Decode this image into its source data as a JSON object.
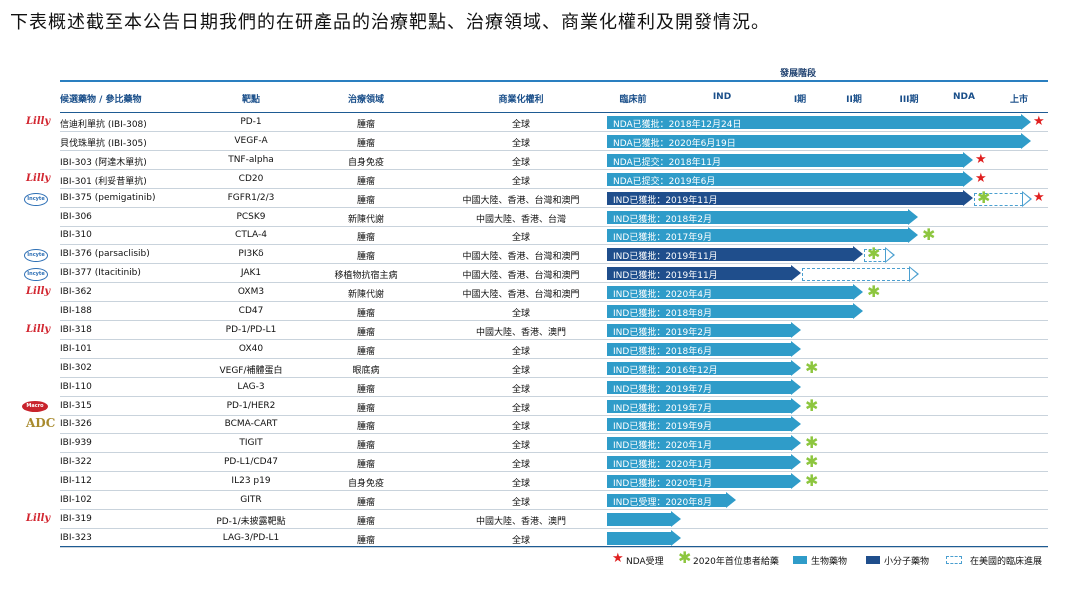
{
  "caption": "下表概述截至本公告日期我們的在研產品的治療靶點、治療領域、商業化權利及開發情況。",
  "stage_group": "發展階段",
  "headers": {
    "name": "候選藥物 / 參比藥物",
    "target": "靶點",
    "area": "治療領域",
    "rights": "商業化權利",
    "preclinical": "臨床前",
    "ind": "IND",
    "phase1": "I期",
    "phase2": "II期",
    "phase3": "III期",
    "nda": "NDA",
    "launch": "上市"
  },
  "stage_order": [
    "preclinical",
    "ind",
    "phase1",
    "phase2",
    "phase3",
    "nda",
    "launch"
  ],
  "rows": [
    {
      "logo": "Lilly",
      "name": "信迪利單抗 (IBI-308)",
      "target": "PD-1",
      "area": "腫瘤",
      "rights": "全球",
      "bar": {
        "type": "bio",
        "end_stage": "launch",
        "label": "NDA已獲批：2018年12月24日"
      },
      "star": true
    },
    {
      "logo": "",
      "name": "貝伐珠單抗 (IBI-305)",
      "target": "VEGF-A",
      "area": "腫瘤",
      "rights": "全球",
      "bar": {
        "type": "bio",
        "end_stage": "launch",
        "label": "NDA已獲批：2020年6月19日"
      },
      "star": false
    },
    {
      "logo": "",
      "name": "IBI-303 (阿達木單抗)",
      "target": "TNF-alpha",
      "area": "自身免疫",
      "rights": "全球",
      "bar": {
        "type": "bio",
        "end_stage": "nda",
        "label": "NDA已提交：2018年11月"
      },
      "star": true
    },
    {
      "logo": "Lilly",
      "name": "IBI-301 (利妥昔單抗)",
      "target": "CD20",
      "area": "腫瘤",
      "rights": "全球",
      "bar": {
        "type": "bio",
        "end_stage": "nda",
        "label": "NDA已提交：2019年6月"
      },
      "star": true
    },
    {
      "logo": "Incyte",
      "name": "IBI-375 (pemigatinib)",
      "target": "FGFR1/2/3",
      "area": "腫瘤",
      "rights": "中國大陸、香港、台灣和澳門",
      "bar": {
        "type": "sm",
        "end_stage": "nda",
        "label": "IND已獲批：2019年11月"
      },
      "asterisk": true,
      "us_stage": "launch",
      "star": true
    },
    {
      "logo": "",
      "name": "IBI-306",
      "target": "PCSK9",
      "area": "新陳代謝",
      "rights": "中國大陸、香港、台灣",
      "bar": {
        "type": "bio",
        "end_stage": "phase3",
        "label": "IND已獲批：2018年2月"
      }
    },
    {
      "logo": "",
      "name": "IBI-310",
      "target": "CTLA-4",
      "area": "腫瘤",
      "rights": "全球",
      "bar": {
        "type": "bio",
        "end_stage": "phase3",
        "label": "IND已獲批：2017年9月"
      },
      "asterisk": true
    },
    {
      "logo": "Incyte",
      "name": "IBI-376 (parsaclisib)",
      "target": "PI3Kδ",
      "area": "腫瘤",
      "rights": "中國大陸、香港、台灣和澳門",
      "bar": {
        "type": "sm",
        "end_stage": "phase2",
        "label": "IND已獲批：2019年11月"
      },
      "us_stage": "phase3a",
      "asterisk": true
    },
    {
      "logo": "Incyte",
      "name": "IBI-377 (Itacitinib)",
      "target": "JAK1",
      "area": "移植物抗宿主病",
      "rights": "中國大陸、香港、台灣和澳門",
      "bar": {
        "type": "sm",
        "end_stage": "phase1",
        "label": "IND已獲批：2019年11月"
      },
      "us_stage": "phase3"
    },
    {
      "logo": "Lilly",
      "name": "IBI-362",
      "target": "OXM3",
      "area": "新陳代謝",
      "rights": "中國大陸、香港、台灣和澳門",
      "bar": {
        "type": "bio",
        "end_stage": "phase2",
        "label": "IND已獲批：2020年4月"
      },
      "asterisk": true
    },
    {
      "logo": "",
      "name": "IBI-188",
      "target": "CD47",
      "area": "腫瘤",
      "rights": "全球",
      "bar": {
        "type": "bio",
        "end_stage": "phase2",
        "label": "IND已獲批：2018年8月"
      }
    },
    {
      "logo": "Lilly",
      "name": "IBI-318",
      "target": "PD-1/PD-L1",
      "area": "腫瘤",
      "rights": "中國大陸、香港、澳門",
      "bar": {
        "type": "bio",
        "end_stage": "phase1",
        "label": "IND已獲批：2019年2月"
      }
    },
    {
      "logo": "",
      "name": "IBI-101",
      "target": "OX40",
      "area": "腫瘤",
      "rights": "全球",
      "bar": {
        "type": "bio",
        "end_stage": "phase1",
        "label": "IND已獲批：2018年6月"
      }
    },
    {
      "logo": "",
      "name": "IBI-302",
      "target": "VEGF/補體蛋白",
      "area": "眼底病",
      "rights": "全球",
      "bar": {
        "type": "bio",
        "end_stage": "phase1",
        "label": "IND已獲批：2016年12月"
      },
      "asterisk": true
    },
    {
      "logo": "",
      "name": "IBI-110",
      "target": "LAG-3",
      "area": "腫瘤",
      "rights": "全球",
      "bar": {
        "type": "bio",
        "end_stage": "phase1",
        "label": "IND已獲批：2019年7月"
      }
    },
    {
      "logo": "Macro",
      "name": "IBI-315",
      "target": "PD-1/HER2",
      "area": "腫瘤",
      "rights": "全球",
      "bar": {
        "type": "bio",
        "end_stage": "phase1",
        "label": "IND已獲批：2019年7月"
      },
      "asterisk": true
    },
    {
      "logo": "ADC",
      "name": "IBI-326",
      "target": "BCMA-CART",
      "area": "腫瘤",
      "rights": "全球",
      "bar": {
        "type": "bio",
        "end_stage": "phase1",
        "label": "IND已獲批：2019年9月"
      }
    },
    {
      "logo": "",
      "name": "IBI-939",
      "target": "TIGIT",
      "area": "腫瘤",
      "rights": "全球",
      "bar": {
        "type": "bio",
        "end_stage": "phase1",
        "label": "IND已獲批：2020年1月"
      },
      "asterisk": true
    },
    {
      "logo": "",
      "name": "IBI-322",
      "target": "PD-L1/CD47",
      "area": "腫瘤",
      "rights": "全球",
      "bar": {
        "type": "bio",
        "end_stage": "phase1",
        "label": "IND已獲批：2020年1月"
      },
      "asterisk": true
    },
    {
      "logo": "",
      "name": "IBI-112",
      "target": "IL23 p19",
      "area": "自身免疫",
      "rights": "全球",
      "bar": {
        "type": "bio",
        "end_stage": "phase1",
        "label": "IND已獲批：2020年1月"
      },
      "asterisk": true
    },
    {
      "logo": "",
      "name": "IBI-102",
      "target": "GITR",
      "area": "腫瘤",
      "rights": "全球",
      "bar": {
        "type": "bio",
        "end_stage": "ind_mid",
        "label": "IND已受理：2020年8月"
      }
    },
    {
      "logo": "Lilly",
      "name": "IBI-319",
      "target": "PD-1/未披露靶點",
      "area": "腫瘤",
      "rights": "中國大陸、香港、澳門",
      "bar": {
        "type": "bio",
        "end_stage": "ind",
        "label": ""
      }
    },
    {
      "logo": "",
      "name": "IBI-323",
      "target": "LAG-3/PD-L1",
      "area": "腫瘤",
      "rights": "全球",
      "bar": {
        "type": "bio",
        "end_stage": "ind",
        "label": ""
      }
    }
  ],
  "legend": {
    "nda": "NDA受理",
    "first_patient": "2020年首位患者給藥",
    "biologic": "生物藥物",
    "small_molecule": "小分子藥物",
    "us_progress": "在美國的臨床進展"
  },
  "colors": {
    "biologic": "#2f9cc9",
    "small_molecule": "#1f4e8c",
    "star": "#e02020",
    "asterisk": "#8dc63f"
  }
}
